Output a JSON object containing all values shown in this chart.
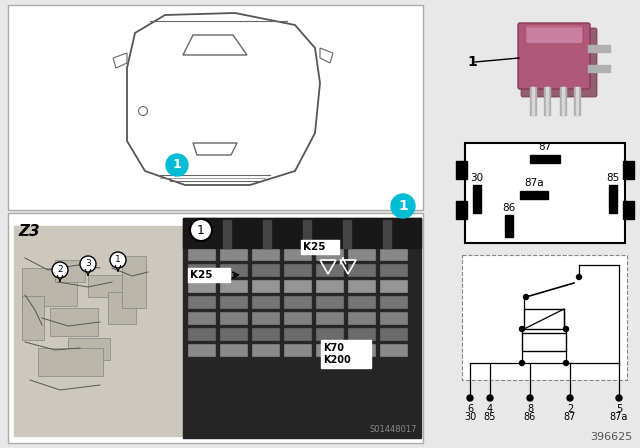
{
  "bg_color": "#e8e8e8",
  "white": "#ffffff",
  "black": "#000000",
  "cyan_badge": "#00bcd4",
  "pink_relay_main": "#b05878",
  "pink_relay_light": "#c06888",
  "pink_relay_dark": "#8a3858",
  "metal_pin": "#b0b0b0",
  "part_number": "396625",
  "car_label": "Z3",
  "photo_watermark": "S01448017",
  "pin_labels_top": [
    "6",
    "4",
    "",
    "8",
    "2",
    "5"
  ],
  "pin_labels_bot": [
    "30",
    "85",
    "",
    "86",
    "87",
    "87a"
  ],
  "relay_pins": [
    "87",
    "87a",
    "30",
    "85",
    "86"
  ],
  "k_labels_photo": [
    "K25",
    "K25",
    "K70\nK200"
  ],
  "callout_numbers": [
    "1",
    "2",
    "3",
    "1",
    "1"
  ]
}
